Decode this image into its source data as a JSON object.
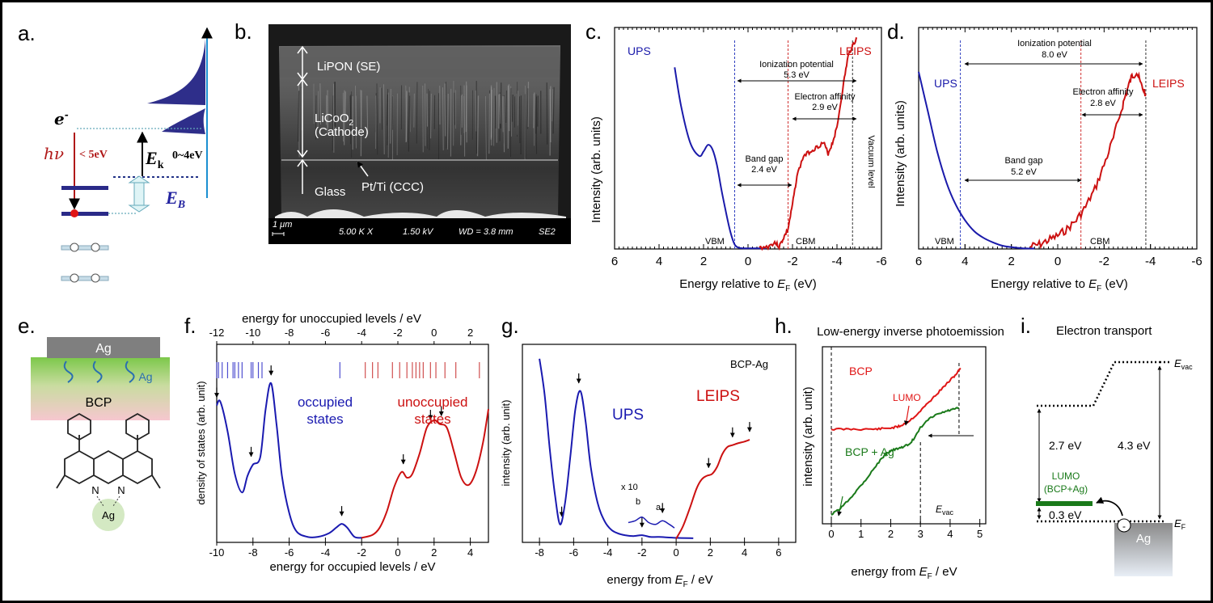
{
  "panel_labels": [
    "a.",
    "b.",
    "c.",
    "d.",
    "e.",
    "f.",
    "g.",
    "h.",
    "i."
  ],
  "panel_a": {
    "electron": "e",
    "electron_sup": "-",
    "photon": "hν",
    "photon_energy": "< 5eV",
    "ek_symbol": "E",
    "ek_sub": "k",
    "ek_range": "0~4eV",
    "eb_symbol": "E",
    "eb_sub": "B"
  },
  "panel_b": {
    "lipon": "LiPON (SE)",
    "licoo2_main": "LiCoO",
    "licoo2_sub": "2",
    "cathode": "(Cathode)",
    "glass": "Glass",
    "ptti": "Pt/Ti (CCC)",
    "scale": "1 μm",
    "mag": "5.00 K X",
    "kv": "1.50 kV",
    "wd": "WD =  3.8 mm",
    "det": "SE2"
  },
  "chart_data": [
    {
      "id": "c",
      "type": "line",
      "xlabel_main": "Energy relative to ",
      "xlabel_sym": "E",
      "xlabel_sub": "F",
      "xlabel_unit": " (eV)",
      "ylabel": "Intensity (arb. units)",
      "xlim": [
        6,
        -6
      ],
      "xticks": [
        "6",
        "4",
        "2",
        "0",
        "-2",
        "-4",
        "-6"
      ],
      "series": [
        {
          "name": "UPS",
          "color": "#1a1aaa",
          "x": [
            3.3,
            3.0,
            2.6,
            2.2,
            2.0,
            1.8,
            1.6,
            1.4,
            1.2,
            1.0,
            0.8,
            0.6,
            0.4,
            0.2,
            0.0,
            -0.4,
            -0.8
          ],
          "y": [
            0.82,
            0.64,
            0.48,
            0.42,
            0.44,
            0.47,
            0.45,
            0.38,
            0.27,
            0.17,
            0.08,
            0.02,
            0.005,
            0.003,
            0.003,
            0.003,
            0.003
          ]
        },
        {
          "name": "LEIPS",
          "color": "#cc1111",
          "x": [
            -0.5,
            -0.9,
            -1.2,
            -1.4,
            -1.6,
            -1.8,
            -2.0,
            -2.2,
            -2.5,
            -2.8,
            -3.1,
            -3.4,
            -3.6,
            -3.8,
            -4.0,
            -4.3,
            -4.5,
            -4.7,
            -4.9
          ],
          "y": [
            0.005,
            0.01,
            0.03,
            0.01,
            0.05,
            0.09,
            0.2,
            0.33,
            0.42,
            0.44,
            0.46,
            0.48,
            0.43,
            0.48,
            0.55,
            0.75,
            0.87,
            0.92,
            0.95
          ]
        }
      ],
      "labels": {
        "ups": "UPS",
        "leips": "LEIPS",
        "vbm": "VBM",
        "cbm": "CBM",
        "ip": "Ionization potential",
        "ip_val": "5.3 eV",
        "ea": "Electron affinity",
        "ea_val": "2.9 eV",
        "bg": "Band gap",
        "bg_val": "2.4 eV",
        "vac": "Vacuum level"
      },
      "markers": {
        "vbm": 0.6,
        "cbm": -1.8,
        "vac": -4.7
      }
    },
    {
      "id": "d",
      "type": "line",
      "xlabel_main": "Energy relative to ",
      "xlabel_sym": "E",
      "xlabel_sub": "F",
      "xlabel_unit": " (eV)",
      "ylabel": "Intensity (arb. units)",
      "xlim": [
        6,
        -6
      ],
      "xticks": [
        "6",
        "4",
        "2",
        "0",
        "-2",
        "-4",
        "-6"
      ],
      "series": [
        {
          "name": "UPS",
          "color": "#1a1aaa",
          "x": [
            6.0,
            5.6,
            5.2,
            4.8,
            4.4,
            4.0,
            3.6,
            3.2,
            2.8,
            2.4,
            2.0,
            1.5,
            1.0
          ],
          "y": [
            0.8,
            0.62,
            0.44,
            0.3,
            0.2,
            0.13,
            0.08,
            0.05,
            0.03,
            0.015,
            0.008,
            0.003,
            0.002
          ]
        },
        {
          "name": "LEIPS",
          "color": "#cc1111",
          "x": [
            1.2,
            0.8,
            0.4,
            0.0,
            -0.4,
            -0.8,
            -1.2,
            -1.6,
            -2.0,
            -2.4,
            -2.8,
            -3.0,
            -3.2,
            -3.4,
            -3.6,
            -3.8
          ],
          "y": [
            0.01,
            0.02,
            0.04,
            0.06,
            0.09,
            0.13,
            0.19,
            0.27,
            0.38,
            0.5,
            0.65,
            0.72,
            0.78,
            0.8,
            0.74,
            0.7
          ]
        }
      ],
      "labels": {
        "ups": "UPS",
        "leips": "LEIPS",
        "vbm": "VBM",
        "cbm": "CBM",
        "ip": "Ionization potential",
        "ip_val": "8.0 eV",
        "ea": "Electron affinity",
        "ea_val": "2.8 eV",
        "bg": "Band gap",
        "bg_val": "5.2 eV"
      },
      "markers": {
        "vbm": 4.2,
        "cbm": -1.0,
        "vac": -3.8
      }
    },
    {
      "id": "f",
      "type": "line",
      "xlabel": "energy for occupied levels / eV",
      "xlabel_top": "energy for unoccupied levels / eV",
      "ylabel": "density of states (arb. unit)",
      "xlim": [
        -10,
        5
      ],
      "xticks": [
        "-10",
        "-8",
        "-6",
        "-4",
        "-2",
        "0",
        "2",
        "4"
      ],
      "top_xticks": [
        "-12",
        "-10",
        "-8",
        "-6",
        "-4",
        "-2",
        "0",
        "2"
      ],
      "series": [
        {
          "name": "occupied states",
          "color": "#1a1ab0",
          "x": [
            -10.0,
            -9.8,
            -9.4,
            -9.0,
            -8.6,
            -8.3,
            -8.0,
            -7.6,
            -7.3,
            -7.0,
            -6.7,
            -6.4,
            -6.0,
            -5.6,
            -5.0,
            -4.4,
            -3.8,
            -3.4,
            -3.1,
            -2.8,
            -2.4,
            -2.0
          ],
          "y": [
            0.72,
            0.74,
            0.58,
            0.35,
            0.25,
            0.34,
            0.4,
            0.44,
            0.7,
            0.84,
            0.62,
            0.34,
            0.14,
            0.04,
            0.01,
            0.01,
            0.03,
            0.06,
            0.08,
            0.06,
            0.01,
            0.005
          ]
        },
        {
          "name": "unoccupied states",
          "color": "#cc1111",
          "x": [
            -2.0,
            -1.4,
            -1.0,
            -0.6,
            -0.2,
            0.2,
            0.5,
            0.8,
            1.2,
            1.6,
            2.0,
            2.3,
            2.7,
            3.1,
            3.5,
            3.9,
            4.3,
            4.7,
            5.0
          ],
          "y": [
            0.005,
            0.02,
            0.06,
            0.15,
            0.28,
            0.36,
            0.33,
            0.35,
            0.46,
            0.6,
            0.64,
            0.62,
            0.6,
            0.47,
            0.33,
            0.29,
            0.36,
            0.52,
            0.7
          ]
        }
      ],
      "labels": {
        "occ1": "occupied",
        "occ2": "states",
        "unocc1": "unoccupied",
        "unocc2": "states"
      },
      "occ_ticks": [
        -10.0,
        -9.9,
        -9.7,
        -9.4,
        -9.1,
        -9.0,
        -8.8,
        -8.6,
        -8.1,
        -8.0,
        -7.7,
        -7.5,
        -3.2
      ],
      "unocc_ticks": [
        -1.8,
        -1.4,
        -1.1,
        -0.3,
        0.1,
        0.5,
        0.8,
        1.0,
        1.2,
        1.4,
        1.8,
        2.1,
        2.6,
        3.2,
        4.5
      ],
      "arrows": [
        -10.0,
        -8.1,
        -7.0,
        -3.1,
        0.3,
        1.8,
        2.4
      ]
    },
    {
      "id": "g",
      "type": "line",
      "xlabel_main": "energy from ",
      "xlabel_sym": "E",
      "xlabel_sub": "F",
      "xlabel_unit": " / eV",
      "ylabel": "intensity (arb. unit)",
      "title": "BCP-Ag",
      "xlim": [
        -9,
        7
      ],
      "xticks": [
        "-8",
        "-6",
        "-4",
        "-2",
        "0",
        "2",
        "4",
        "6"
      ],
      "series": [
        {
          "name": "UPS",
          "color": "#1a1ab0",
          "x": [
            -8.0,
            -7.7,
            -7.4,
            -7.1,
            -6.8,
            -6.5,
            -6.2,
            -5.9,
            -5.6,
            -5.3,
            -5.0,
            -4.6,
            -4.2,
            -3.8,
            -3.4,
            -3.0,
            -2.5,
            -2.0,
            -1.5,
            -1.0,
            0.0,
            1.0
          ],
          "y": [
            1.0,
            0.8,
            0.5,
            0.25,
            0.08,
            0.2,
            0.45,
            0.72,
            0.82,
            0.65,
            0.4,
            0.2,
            0.1,
            0.05,
            0.03,
            0.02,
            0.015,
            0.02,
            0.01,
            0.01,
            0.005,
            0.003
          ]
        },
        {
          "name": "x 10",
          "color": "#1a1ab0",
          "x": [
            -2.8,
            -2.4,
            -2.0,
            -1.6,
            -1.2,
            -0.8,
            -0.4,
            -0.1
          ],
          "y": [
            0.09,
            0.1,
            0.12,
            0.09,
            0.08,
            0.1,
            0.08,
            0.06
          ]
        },
        {
          "name": "LEIPS",
          "color": "#cc1111",
          "x": [
            0.0,
            0.4,
            0.8,
            1.2,
            1.5,
            1.8,
            2.1,
            2.4,
            2.7,
            3.0,
            3.3,
            3.6,
            4.0,
            4.3
          ],
          "y": [
            0.0,
            0.07,
            0.17,
            0.28,
            0.33,
            0.35,
            0.36,
            0.4,
            0.47,
            0.51,
            0.52,
            0.53,
            0.54,
            0.55
          ]
        }
      ],
      "labels": {
        "ups": "UPS",
        "leips": "LEIPS",
        "x10": "x 10",
        "a": "a",
        "b": "b"
      },
      "arrows": [
        -6.7,
        -5.7,
        -2.0,
        -0.8,
        1.9,
        3.3,
        4.3
      ]
    },
    {
      "id": "h",
      "type": "line",
      "title": "Low-energy inverse photoemission",
      "xlabel_main": "energy from ",
      "xlabel_sym": "E",
      "xlabel_sub": "F",
      "xlabel_unit": " / eV",
      "ylabel": "intensity (arb. unit)",
      "xlim": [
        -0.3,
        5.2
      ],
      "xticks": [
        "0",
        "1",
        "2",
        "3",
        "4",
        "5"
      ],
      "series": [
        {
          "name": "BCP",
          "color": "#e01515",
          "x": [
            0.0,
            0.5,
            1.0,
            1.5,
            1.8,
            2.1,
            2.3,
            2.6,
            2.9,
            3.2,
            3.5,
            3.8,
            4.0,
            4.2,
            4.35
          ],
          "y": [
            0.56,
            0.56,
            0.56,
            0.56,
            0.565,
            0.57,
            0.58,
            0.61,
            0.66,
            0.72,
            0.78,
            0.84,
            0.88,
            0.92,
            0.96
          ]
        },
        {
          "name": "BCP + Ag",
          "color": "#1a7a1a",
          "x": [
            0.0,
            0.3,
            0.6,
            0.9,
            1.2,
            1.5,
            1.8,
            2.0,
            2.2,
            2.4,
            2.6,
            2.8,
            3.0,
            3.3,
            3.6,
            3.9,
            4.1,
            4.3
          ],
          "y": [
            0.0,
            0.04,
            0.1,
            0.17,
            0.24,
            0.32,
            0.39,
            0.42,
            0.43,
            0.44,
            0.46,
            0.5,
            0.57,
            0.63,
            0.66,
            0.68,
            0.69,
            0.7
          ]
        }
      ],
      "labels": {
        "bcp": "BCP",
        "bcpag": "BCP + Ag",
        "lumo": "LUMO",
        "evac_sym": "E",
        "evac_sub": "vac"
      },
      "markers": {
        "ef": 0.0,
        "evac": 3.0,
        "right": 4.3
      }
    }
  ],
  "panel_e": {
    "ag_top": "Ag",
    "ag_diff": "Ag",
    "bcp": "BCP",
    "n1": "N",
    "n2": "N",
    "ag_center": "Ag"
  },
  "panel_i": {
    "title": "Electron transport",
    "evac_sym": "E",
    "evac_sub": "vac",
    "val_27": "2.7 eV",
    "val_43": "4.3 eV",
    "lumo1": "LUMO",
    "lumo2": "(BCP+Ag)",
    "val_03": "0.3 eV",
    "ef_sym": "E",
    "ef_sub": "F",
    "ag": "Ag",
    "minus": "-"
  }
}
